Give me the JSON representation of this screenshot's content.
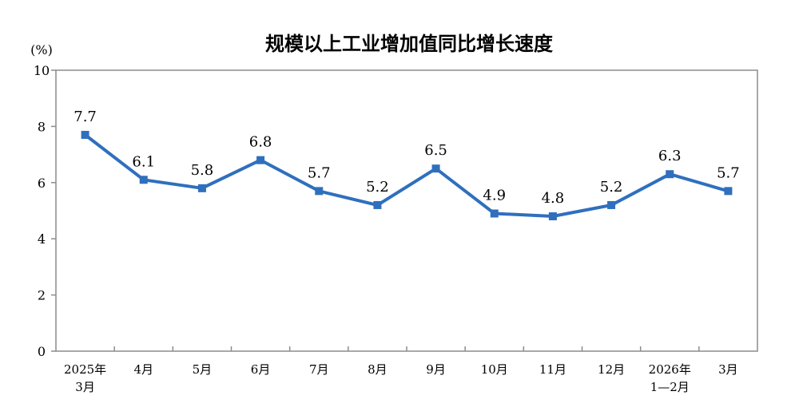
{
  "chart_data": {
    "type": "line",
    "title": "规模以上工业增加值同比增长速度",
    "ylabel": "(%)",
    "ylim": [
      0,
      10
    ],
    "yticks": [
      "0",
      "2",
      "4",
      "6",
      "8",
      "10"
    ],
    "grid": false,
    "categories": [
      [
        "2025年",
        "3月"
      ],
      [
        "4月"
      ],
      [
        "5月"
      ],
      [
        "6月"
      ],
      [
        "7月"
      ],
      [
        "8月"
      ],
      [
        "9月"
      ],
      [
        "10月"
      ],
      [
        "11月"
      ],
      [
        "12月"
      ],
      [
        "2026年",
        "1—2月"
      ],
      [
        "3月"
      ]
    ],
    "series": [
      {
        "values": [
          7.7,
          6.1,
          5.8,
          6.8,
          5.7,
          5.2,
          6.5,
          4.9,
          4.8,
          5.2,
          6.3,
          5.7
        ],
        "labels": [
          "7.7",
          "6.1",
          "5.8",
          "6.8",
          "5.7",
          "5.2",
          "6.5",
          "4.9",
          "4.8",
          "5.2",
          "6.3",
          "5.7"
        ]
      }
    ],
    "colors": {
      "line": "#2f6fbe",
      "axis": "#8c8c8c"
    }
  }
}
